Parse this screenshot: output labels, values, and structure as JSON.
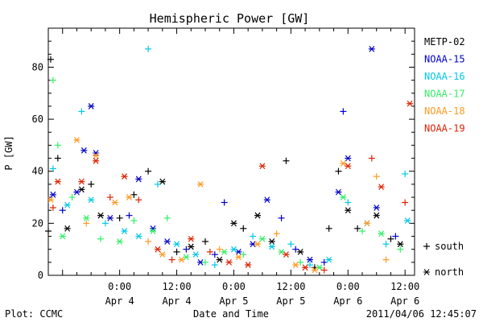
{
  "chart_data": {
    "type": "scatter",
    "title": "Hemispheric Power [GW]",
    "ylabel": "P [GW]",
    "xlabel": "Date and Time",
    "ylim": [
      0,
      95
    ],
    "xlim": [
      "2011-04-03 09:00",
      "2011-04-06 14:00"
    ],
    "y_ticks": [
      0,
      20,
      40,
      60,
      80
    ],
    "x_ticks": [
      {
        "time": "2011-04-04 00:00",
        "line1": "0:00",
        "line2": "Apr 4"
      },
      {
        "time": "2011-04-04 12:00",
        "line1": "12:00",
        "line2": "Apr 4"
      },
      {
        "time": "2011-04-05 00:00",
        "line1": "0:00",
        "line2": "Apr 5"
      },
      {
        "time": "2011-04-05 12:00",
        "line1": "12:00",
        "line2": "Apr 5"
      },
      {
        "time": "2011-04-06 00:00",
        "line1": "0:00",
        "line2": "Apr 6"
      },
      {
        "time": "2011-04-06 12:00",
        "line1": "12:00",
        "line2": "Apr 6"
      }
    ],
    "series": [
      {
        "name": "METP-02",
        "color": "#000000",
        "points": [
          {
            "x": "2011-04-03 09:00",
            "y": 17,
            "hemisphere": "south"
          },
          {
            "x": "2011-04-03 09:30",
            "y": 83,
            "hemisphere": "south"
          },
          {
            "x": "2011-04-03 11:00",
            "y": 45,
            "hemisphere": "south"
          },
          {
            "x": "2011-04-03 13:00",
            "y": 18,
            "hemisphere": "north"
          },
          {
            "x": "2011-04-03 16:00",
            "y": 33,
            "hemisphere": "north"
          },
          {
            "x": "2011-04-03 18:00",
            "y": 35,
            "hemisphere": "south"
          },
          {
            "x": "2011-04-03 20:00",
            "y": 23,
            "hemisphere": "north"
          },
          {
            "x": "2011-04-04 00:00",
            "y": 22,
            "hemisphere": "south"
          },
          {
            "x": "2011-04-04 03:00",
            "y": 31,
            "hemisphere": "south"
          },
          {
            "x": "2011-04-04 06:00",
            "y": 40,
            "hemisphere": "south"
          },
          {
            "x": "2011-04-04 09:00",
            "y": 36,
            "hemisphere": "north"
          },
          {
            "x": "2011-04-04 12:00",
            "y": 9,
            "hemisphere": "south"
          },
          {
            "x": "2011-04-04 15:00",
            "y": 11,
            "hemisphere": "north"
          },
          {
            "x": "2011-04-04 18:00",
            "y": 13,
            "hemisphere": "south"
          },
          {
            "x": "2011-04-04 21:00",
            "y": 6,
            "hemisphere": "north"
          },
          {
            "x": "2011-04-05 00:00",
            "y": 20,
            "hemisphere": "north"
          },
          {
            "x": "2011-04-05 02:00",
            "y": 18,
            "hemisphere": "south"
          },
          {
            "x": "2011-04-05 05:00",
            "y": 23,
            "hemisphere": "north"
          },
          {
            "x": "2011-04-05 08:00",
            "y": 13,
            "hemisphere": "north"
          },
          {
            "x": "2011-04-05 11:00",
            "y": 44,
            "hemisphere": "south"
          },
          {
            "x": "2011-04-05 14:00",
            "y": 9,
            "hemisphere": "north"
          },
          {
            "x": "2011-04-05 17:00",
            "y": 3,
            "hemisphere": "south"
          },
          {
            "x": "2011-04-05 20:00",
            "y": 18,
            "hemisphere": "south"
          },
          {
            "x": "2011-04-05 22:00",
            "y": 40,
            "hemisphere": "south"
          },
          {
            "x": "2011-04-06 00:00",
            "y": 25,
            "hemisphere": "north"
          },
          {
            "x": "2011-04-06 02:00",
            "y": 18,
            "hemisphere": "south"
          },
          {
            "x": "2011-04-06 06:00",
            "y": 23,
            "hemisphere": "north"
          },
          {
            "x": "2011-04-06 09:00",
            "y": 14,
            "hemisphere": "south"
          },
          {
            "x": "2011-04-06 11:00",
            "y": 12,
            "hemisphere": "north"
          }
        ]
      },
      {
        "name": "NOAA-15",
        "color": "#0000cc",
        "points": [
          {
            "x": "2011-04-03 10:00",
            "y": 31,
            "hemisphere": "north"
          },
          {
            "x": "2011-04-03 12:00",
            "y": 25,
            "hemisphere": "south"
          },
          {
            "x": "2011-04-03 15:00",
            "y": 32,
            "hemisphere": "north"
          },
          {
            "x": "2011-04-03 16:30",
            "y": 48,
            "hemisphere": "north"
          },
          {
            "x": "2011-04-03 18:00",
            "y": 65,
            "hemisphere": "north"
          },
          {
            "x": "2011-04-03 19:00",
            "y": 47,
            "hemisphere": "north"
          },
          {
            "x": "2011-04-03 22:00",
            "y": 22,
            "hemisphere": "north"
          },
          {
            "x": "2011-04-04 02:00",
            "y": 23,
            "hemisphere": "south"
          },
          {
            "x": "2011-04-04 04:00",
            "y": 37,
            "hemisphere": "north"
          },
          {
            "x": "2011-04-04 07:00",
            "y": 18,
            "hemisphere": "north"
          },
          {
            "x": "2011-04-04 10:00",
            "y": 13,
            "hemisphere": "north"
          },
          {
            "x": "2011-04-04 14:00",
            "y": 10,
            "hemisphere": "south"
          },
          {
            "x": "2011-04-04 17:00",
            "y": 5,
            "hemisphere": "north"
          },
          {
            "x": "2011-04-04 20:00",
            "y": 8,
            "hemisphere": "south"
          },
          {
            "x": "2011-04-04 22:00",
            "y": 28,
            "hemisphere": "south"
          },
          {
            "x": "2011-04-05 01:00",
            "y": 9,
            "hemisphere": "north"
          },
          {
            "x": "2011-04-05 04:00",
            "y": 12,
            "hemisphere": "north"
          },
          {
            "x": "2011-04-05 07:00",
            "y": 29,
            "hemisphere": "north"
          },
          {
            "x": "2011-04-05 10:00",
            "y": 22,
            "hemisphere": "south"
          },
          {
            "x": "2011-04-05 13:00",
            "y": 10,
            "hemisphere": "south"
          },
          {
            "x": "2011-04-05 16:00",
            "y": 6,
            "hemisphere": "north"
          },
          {
            "x": "2011-04-05 19:00",
            "y": 5,
            "hemisphere": "south"
          },
          {
            "x": "2011-04-05 22:00",
            "y": 32,
            "hemisphere": "north"
          },
          {
            "x": "2011-04-05 23:00",
            "y": 63,
            "hemisphere": "south"
          },
          {
            "x": "2011-04-06 00:00",
            "y": 45,
            "hemisphere": "north"
          },
          {
            "x": "2011-04-06 05:00",
            "y": 87,
            "hemisphere": "north"
          },
          {
            "x": "2011-04-06 06:00",
            "y": 26,
            "hemisphere": "north"
          },
          {
            "x": "2011-04-06 10:00",
            "y": 15,
            "hemisphere": "south"
          }
        ]
      },
      {
        "name": "NOAA-16",
        "color": "#00c8e8",
        "points": [
          {
            "x": "2011-04-03 10:00",
            "y": 41,
            "hemisphere": "south"
          },
          {
            "x": "2011-04-03 13:00",
            "y": 27,
            "hemisphere": "north"
          },
          {
            "x": "2011-04-03 16:00",
            "y": 63,
            "hemisphere": "south"
          },
          {
            "x": "2011-04-03 18:00",
            "y": 29,
            "hemisphere": "north"
          },
          {
            "x": "2011-04-03 21:00",
            "y": 20,
            "hemisphere": "south"
          },
          {
            "x": "2011-04-04 01:00",
            "y": 17,
            "hemisphere": "north"
          },
          {
            "x": "2011-04-04 04:00",
            "y": 15,
            "hemisphere": "north"
          },
          {
            "x": "2011-04-04 06:00",
            "y": 87,
            "hemisphere": "south"
          },
          {
            "x": "2011-04-04 08:00",
            "y": 35,
            "hemisphere": "south"
          },
          {
            "x": "2011-04-04 12:00",
            "y": 12,
            "hemisphere": "north"
          },
          {
            "x": "2011-04-04 16:00",
            "y": 8,
            "hemisphere": "north"
          },
          {
            "x": "2011-04-04 20:00",
            "y": 4,
            "hemisphere": "south"
          },
          {
            "x": "2011-04-05 00:00",
            "y": 10,
            "hemisphere": "north"
          },
          {
            "x": "2011-04-05 04:00",
            "y": 15,
            "hemisphere": "south"
          },
          {
            "x": "2011-04-05 08:00",
            "y": 11,
            "hemisphere": "north"
          },
          {
            "x": "2011-04-05 12:00",
            "y": 12,
            "hemisphere": "south"
          },
          {
            "x": "2011-04-05 16:00",
            "y": 4,
            "hemisphere": "south"
          },
          {
            "x": "2011-04-05 20:00",
            "y": 6,
            "hemisphere": "north"
          },
          {
            "x": "2011-04-06 00:00",
            "y": 28,
            "hemisphere": "south"
          },
          {
            "x": "2011-04-06 04:00",
            "y": 20,
            "hemisphere": "north"
          },
          {
            "x": "2011-04-06 08:00",
            "y": 12,
            "hemisphere": "south"
          },
          {
            "x": "2011-04-06 12:00",
            "y": 39,
            "hemisphere": "south"
          },
          {
            "x": "2011-04-06 12:30",
            "y": 21,
            "hemisphere": "north"
          }
        ]
      },
      {
        "name": "NOAA-17",
        "color": "#33ee66",
        "points": [
          {
            "x": "2011-04-03 10:00",
            "y": 75,
            "hemisphere": "south"
          },
          {
            "x": "2011-04-03 11:00",
            "y": 50,
            "hemisphere": "south"
          },
          {
            "x": "2011-04-03 12:00",
            "y": 15,
            "hemisphere": "north"
          },
          {
            "x": "2011-04-03 14:00",
            "y": 30,
            "hemisphere": "south"
          },
          {
            "x": "2011-04-03 17:00",
            "y": 22,
            "hemisphere": "north"
          },
          {
            "x": "2011-04-03 20:00",
            "y": 14,
            "hemisphere": "south"
          },
          {
            "x": "2011-04-04 00:00",
            "y": 13,
            "hemisphere": "north"
          },
          {
            "x": "2011-04-04 03:00",
            "y": 21,
            "hemisphere": "south"
          },
          {
            "x": "2011-04-04 07:00",
            "y": 17,
            "hemisphere": "north"
          },
          {
            "x": "2011-04-04 10:00",
            "y": 22,
            "hemisphere": "south"
          },
          {
            "x": "2011-04-04 14:00",
            "y": 7,
            "hemisphere": "north"
          },
          {
            "x": "2011-04-04 18:00",
            "y": 5,
            "hemisphere": "south"
          },
          {
            "x": "2011-04-04 22:00",
            "y": 9,
            "hemisphere": "north"
          },
          {
            "x": "2011-04-05 02:00",
            "y": 8,
            "hemisphere": "south"
          },
          {
            "x": "2011-04-05 06:00",
            "y": 14,
            "hemisphere": "north"
          },
          {
            "x": "2011-04-05 10:00",
            "y": 9,
            "hemisphere": "north"
          },
          {
            "x": "2011-04-05 14:00",
            "y": 5,
            "hemisphere": "south"
          },
          {
            "x": "2011-04-05 18:00",
            "y": 3,
            "hemisphere": "north"
          },
          {
            "x": "2011-04-05 23:00",
            "y": 30,
            "hemisphere": "north"
          },
          {
            "x": "2011-04-06 03:00",
            "y": 17,
            "hemisphere": "south"
          },
          {
            "x": "2011-04-06 07:00",
            "y": 16,
            "hemisphere": "north"
          },
          {
            "x": "2011-04-06 11:00",
            "y": 10,
            "hemisphere": "south"
          }
        ]
      },
      {
        "name": "NOAA-18",
        "color": "#ff9922",
        "points": [
          {
            "x": "2011-04-03 09:30",
            "y": 29,
            "hemisphere": "north"
          },
          {
            "x": "2011-04-03 15:00",
            "y": 52,
            "hemisphere": "north"
          },
          {
            "x": "2011-04-03 17:00",
            "y": 20,
            "hemisphere": "south"
          },
          {
            "x": "2011-04-03 19:00",
            "y": 46,
            "hemisphere": "north"
          },
          {
            "x": "2011-04-03 23:00",
            "y": 28,
            "hemisphere": "north"
          },
          {
            "x": "2011-04-04 02:00",
            "y": 30,
            "hemisphere": "north"
          },
          {
            "x": "2011-04-04 06:00",
            "y": 13,
            "hemisphere": "south"
          },
          {
            "x": "2011-04-04 09:00",
            "y": 8,
            "hemisphere": "north"
          },
          {
            "x": "2011-04-04 13:00",
            "y": 6,
            "hemisphere": "north"
          },
          {
            "x": "2011-04-04 17:00",
            "y": 35,
            "hemisphere": "north"
          },
          {
            "x": "2011-04-04 21:00",
            "y": 10,
            "hemisphere": "south"
          },
          {
            "x": "2011-04-05 01:00",
            "y": 7,
            "hemisphere": "north"
          },
          {
            "x": "2011-04-05 05:00",
            "y": 12,
            "hemisphere": "north"
          },
          {
            "x": "2011-04-05 09:00",
            "y": 16,
            "hemisphere": "south"
          },
          {
            "x": "2011-04-05 13:00",
            "y": 4,
            "hemisphere": "north"
          },
          {
            "x": "2011-04-05 17:00",
            "y": 2,
            "hemisphere": "north"
          },
          {
            "x": "2011-04-05 23:00",
            "y": 43,
            "hemisphere": "north"
          },
          {
            "x": "2011-04-06 04:00",
            "y": 20,
            "hemisphere": "north"
          },
          {
            "x": "2011-04-06 06:00",
            "y": 38,
            "hemisphere": "south"
          },
          {
            "x": "2011-04-06 08:00",
            "y": 6,
            "hemisphere": "south"
          }
        ]
      },
      {
        "name": "NOAA-19",
        "color": "#dd2200",
        "points": [
          {
            "x": "2011-04-03 10:00",
            "y": 26,
            "hemisphere": "south"
          },
          {
            "x": "2011-04-03 11:00",
            "y": 36,
            "hemisphere": "north"
          },
          {
            "x": "2011-04-03 16:00",
            "y": 36,
            "hemisphere": "north"
          },
          {
            "x": "2011-04-03 19:00",
            "y": 44,
            "hemisphere": "north"
          },
          {
            "x": "2011-04-03 22:00",
            "y": 30,
            "hemisphere": "south"
          },
          {
            "x": "2011-04-04 01:00",
            "y": 38,
            "hemisphere": "north"
          },
          {
            "x": "2011-04-04 04:00",
            "y": 29,
            "hemisphere": "south"
          },
          {
            "x": "2011-04-04 08:00",
            "y": 10,
            "hemisphere": "north"
          },
          {
            "x": "2011-04-04 11:00",
            "y": 6,
            "hemisphere": "south"
          },
          {
            "x": "2011-04-04 15:00",
            "y": 14,
            "hemisphere": "north"
          },
          {
            "x": "2011-04-04 19:00",
            "y": 9,
            "hemisphere": "south"
          },
          {
            "x": "2011-04-04 23:00",
            "y": 5,
            "hemisphere": "north"
          },
          {
            "x": "2011-04-05 03:00",
            "y": 4,
            "hemisphere": "north"
          },
          {
            "x": "2011-04-05 06:00",
            "y": 42,
            "hemisphere": "north"
          },
          {
            "x": "2011-04-05 11:00",
            "y": 8,
            "hemisphere": "north"
          },
          {
            "x": "2011-04-05 15:00",
            "y": 3,
            "hemisphere": "north"
          },
          {
            "x": "2011-04-05 19:00",
            "y": 2,
            "hemisphere": "south"
          },
          {
            "x": "2011-04-06 00:00",
            "y": 42,
            "hemisphere": "north"
          },
          {
            "x": "2011-04-06 05:00",
            "y": 45,
            "hemisphere": "south"
          },
          {
            "x": "2011-04-06 07:00",
            "y": 34,
            "hemisphere": "north"
          },
          {
            "x": "2011-04-06 12:00",
            "y": 28,
            "hemisphere": "south"
          },
          {
            "x": "2011-04-06 13:00",
            "y": 66,
            "hemisphere": "north"
          }
        ]
      }
    ],
    "marker_legend": [
      {
        "symbol": "+",
        "label": "south"
      },
      {
        "symbol": "*",
        "label": "north"
      }
    ]
  },
  "footer": {
    "left": "Plot: CCMC",
    "center": "Date and Time",
    "right": "2011/04/06 12:45:07"
  }
}
